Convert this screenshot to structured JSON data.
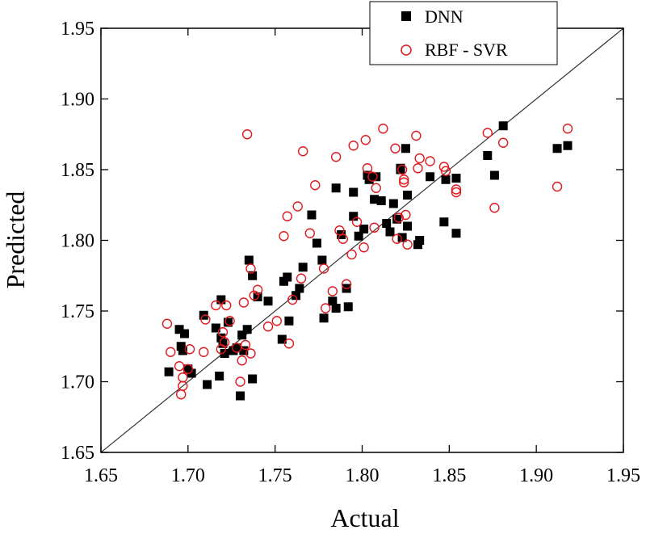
{
  "chart_data": {
    "type": "scatter",
    "title": "",
    "xlabel": "Actual",
    "ylabel": "Predicted",
    "xlim": [
      1.65,
      1.95
    ],
    "ylim": [
      1.65,
      1.95
    ],
    "xticks": [
      "1.65",
      "1.70",
      "1.75",
      "1.80",
      "1.85",
      "1.90",
      "1.95"
    ],
    "yticks": [
      "1.65",
      "1.70",
      "1.75",
      "1.80",
      "1.85",
      "1.90",
      "1.95"
    ],
    "reference_line": {
      "from": [
        1.65,
        1.65
      ],
      "to": [
        1.95,
        1.95
      ],
      "color": "#333333"
    },
    "legend": {
      "placement": "top-right"
    },
    "series": [
      {
        "name": "DNN",
        "marker": "filled-square",
        "color": "#000000",
        "points": [
          [
            1.689,
            1.707
          ],
          [
            1.695,
            1.737
          ],
          [
            1.696,
            1.725
          ],
          [
            1.697,
            1.722
          ],
          [
            1.698,
            1.734
          ],
          [
            1.7,
            1.709
          ],
          [
            1.702,
            1.706
          ],
          [
            1.709,
            1.747
          ],
          [
            1.711,
            1.698
          ],
          [
            1.716,
            1.738
          ],
          [
            1.718,
            1.704
          ],
          [
            1.719,
            1.731
          ],
          [
            1.719,
            1.758
          ],
          [
            1.72,
            1.727
          ],
          [
            1.721,
            1.72
          ],
          [
            1.723,
            1.742
          ],
          [
            1.726,
            1.722
          ],
          [
            1.728,
            1.724
          ],
          [
            1.73,
            1.69
          ],
          [
            1.731,
            1.733
          ],
          [
            1.732,
            1.722
          ],
          [
            1.734,
            1.737
          ],
          [
            1.735,
            1.786
          ],
          [
            1.737,
            1.702
          ],
          [
            1.737,
            1.775
          ],
          [
            1.74,
            1.76
          ],
          [
            1.746,
            1.757
          ],
          [
            1.754,
            1.73
          ],
          [
            1.755,
            1.771
          ],
          [
            1.757,
            1.774
          ],
          [
            1.758,
            1.743
          ],
          [
            1.762,
            1.761
          ],
          [
            1.764,
            1.766
          ],
          [
            1.766,
            1.781
          ],
          [
            1.771,
            1.818
          ],
          [
            1.774,
            1.798
          ],
          [
            1.777,
            1.786
          ],
          [
            1.778,
            1.745
          ],
          [
            1.783,
            1.757
          ],
          [
            1.785,
            1.752
          ],
          [
            1.785,
            1.837
          ],
          [
            1.788,
            1.804
          ],
          [
            1.791,
            1.766
          ],
          [
            1.792,
            1.753
          ],
          [
            1.795,
            1.817
          ],
          [
            1.795,
            1.834
          ],
          [
            1.798,
            1.803
          ],
          [
            1.801,
            1.808
          ],
          [
            1.803,
            1.846
          ],
          [
            1.804,
            1.843
          ],
          [
            1.807,
            1.829
          ],
          [
            1.808,
            1.845
          ],
          [
            1.811,
            1.828
          ],
          [
            1.814,
            1.812
          ],
          [
            1.818,
            1.826
          ],
          [
            1.82,
            1.815
          ],
          [
            1.822,
            1.851
          ],
          [
            1.823,
            1.802
          ],
          [
            1.825,
            1.865
          ],
          [
            1.826,
            1.832
          ],
          [
            1.826,
            1.81
          ],
          [
            1.832,
            1.797
          ],
          [
            1.833,
            1.8
          ],
          [
            1.839,
            1.845
          ],
          [
            1.847,
            1.813
          ],
          [
            1.848,
            1.843
          ],
          [
            1.854,
            1.844
          ],
          [
            1.854,
            1.805
          ],
          [
            1.872,
            1.86
          ],
          [
            1.876,
            1.846
          ],
          [
            1.881,
            1.881
          ],
          [
            1.912,
            1.865
          ],
          [
            1.918,
            1.867
          ],
          [
            1.822,
            1.85
          ],
          [
            1.816,
            1.806
          ]
        ]
      },
      {
        "name": "RBF - SVR",
        "marker": "open-circle",
        "color": "#e0191f",
        "points": [
          [
            1.688,
            1.741
          ],
          [
            1.69,
            1.721
          ],
          [
            1.695,
            1.711
          ],
          [
            1.696,
            1.691
          ],
          [
            1.697,
            1.697
          ],
          [
            1.697,
            1.703
          ],
          [
            1.7,
            1.709
          ],
          [
            1.701,
            1.723
          ],
          [
            1.709,
            1.721
          ],
          [
            1.71,
            1.744
          ],
          [
            1.716,
            1.754
          ],
          [
            1.719,
            1.723
          ],
          [
            1.72,
            1.735
          ],
          [
            1.721,
            1.728
          ],
          [
            1.722,
            1.754
          ],
          [
            1.724,
            1.743
          ],
          [
            1.728,
            1.724
          ],
          [
            1.73,
            1.7
          ],
          [
            1.731,
            1.715
          ],
          [
            1.732,
            1.756
          ],
          [
            1.733,
            1.726
          ],
          [
            1.734,
            1.875
          ],
          [
            1.736,
            1.78
          ],
          [
            1.736,
            1.72
          ],
          [
            1.738,
            1.761
          ],
          [
            1.74,
            1.765
          ],
          [
            1.746,
            1.739
          ],
          [
            1.751,
            1.743
          ],
          [
            1.755,
            1.803
          ],
          [
            1.757,
            1.817
          ],
          [
            1.758,
            1.727
          ],
          [
            1.76,
            1.758
          ],
          [
            1.763,
            1.824
          ],
          [
            1.765,
            1.773
          ],
          [
            1.766,
            1.863
          ],
          [
            1.77,
            1.805
          ],
          [
            1.773,
            1.839
          ],
          [
            1.778,
            1.78
          ],
          [
            1.779,
            1.752
          ],
          [
            1.783,
            1.764
          ],
          [
            1.785,
            1.859
          ],
          [
            1.787,
            1.807
          ],
          [
            1.789,
            1.801
          ],
          [
            1.791,
            1.769
          ],
          [
            1.794,
            1.79
          ],
          [
            1.795,
            1.867
          ],
          [
            1.797,
            1.813
          ],
          [
            1.801,
            1.795
          ],
          [
            1.803,
            1.851
          ],
          [
            1.806,
            1.845
          ],
          [
            1.807,
            1.809
          ],
          [
            1.808,
            1.837
          ],
          [
            1.812,
            1.879
          ],
          [
            1.819,
            1.865
          ],
          [
            1.82,
            1.801
          ],
          [
            1.821,
            1.816
          ],
          [
            1.823,
            1.85
          ],
          [
            1.824,
            1.843
          ],
          [
            1.825,
            1.818
          ],
          [
            1.826,
            1.797
          ],
          [
            1.831,
            1.874
          ],
          [
            1.832,
            1.851
          ],
          [
            1.833,
            1.858
          ],
          [
            1.839,
            1.856
          ],
          [
            1.847,
            1.852
          ],
          [
            1.848,
            1.849
          ],
          [
            1.854,
            1.836
          ],
          [
            1.854,
            1.834
          ],
          [
            1.872,
            1.876
          ],
          [
            1.876,
            1.823
          ],
          [
            1.881,
            1.869
          ],
          [
            1.912,
            1.838
          ],
          [
            1.918,
            1.879
          ],
          [
            1.802,
            1.871
          ],
          [
            1.824,
            1.841
          ]
        ]
      }
    ]
  }
}
